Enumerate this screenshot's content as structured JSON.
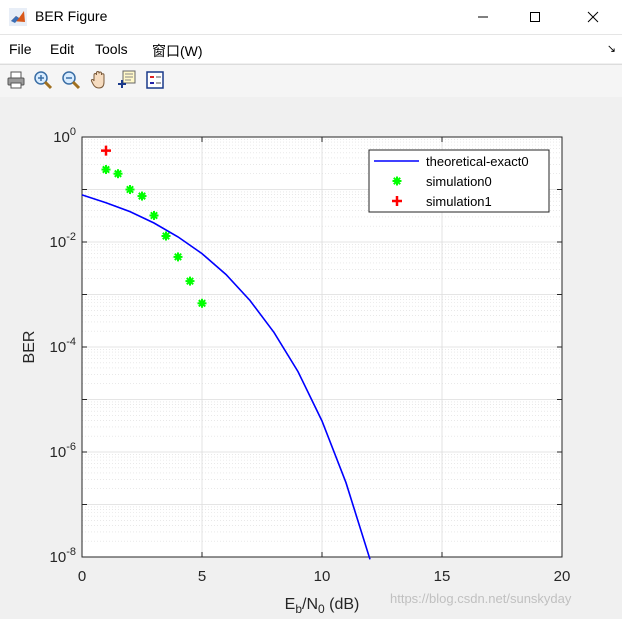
{
  "window": {
    "title": "BER Figure"
  },
  "menu": {
    "items": [
      "File",
      "Edit",
      "Tools",
      "窗口(W)"
    ]
  },
  "toolbar": {
    "tools": [
      "print-icon",
      "zoom-in-icon",
      "zoom-out-icon",
      "pan-icon",
      "data-cursor-icon",
      "legend-icon"
    ]
  },
  "colors": {
    "theory": "#0000ff",
    "sim0": "#00ff00",
    "sim1": "#ff0000",
    "grid": "#dcdcdc",
    "axes": "#262626"
  },
  "watermark": "https://blog.csdn.net/sunskyday",
  "chart_data": {
    "type": "line",
    "title": "",
    "xlabel_main": "E",
    "xlabel_sub1": "b",
    "xlabel_mid": "/N",
    "xlabel_sub2": "0",
    "xlabel_tail": " (dB)",
    "ylabel": "BER",
    "xlim": [
      0,
      20
    ],
    "ylim_exponent": [
      -8,
      0
    ],
    "yscale": "log",
    "grid": true,
    "xticks": [
      "0",
      "5",
      "10",
      "15",
      "20"
    ],
    "yticks": [
      {
        "base": "10",
        "exp": "0",
        "value": 0
      },
      {
        "base": "10",
        "exp": "-2",
        "value": -2
      },
      {
        "base": "10",
        "exp": "-4",
        "value": -4
      },
      {
        "base": "10",
        "exp": "-6",
        "value": -6
      },
      {
        "base": "10",
        "exp": "-8",
        "value": -8
      }
    ],
    "legend_position": "top-right",
    "series": [
      {
        "name": "theoretical-exact0",
        "style": "line",
        "x": [
          0,
          1,
          2,
          3,
          4,
          5,
          6,
          7,
          8,
          9,
          10,
          11,
          12
        ],
        "y": [
          0.079,
          0.056,
          0.038,
          0.023,
          0.0125,
          0.006,
          0.0024,
          0.00077,
          0.00019,
          3.4e-05,
          3.9e-06,
          2.6e-07,
          9e-09
        ]
      },
      {
        "name": "simulation0",
        "style": "star",
        "x": [
          1,
          1.5,
          2,
          2.5,
          3,
          3.5,
          4,
          4.5,
          5
        ],
        "y": [
          0.24,
          0.2,
          0.1,
          0.075,
          0.032,
          0.013,
          0.0052,
          0.0018,
          0.00068
        ]
      },
      {
        "name": "simulation1",
        "style": "plus",
        "x": [
          1
        ],
        "y": [
          0.55
        ]
      }
    ]
  }
}
